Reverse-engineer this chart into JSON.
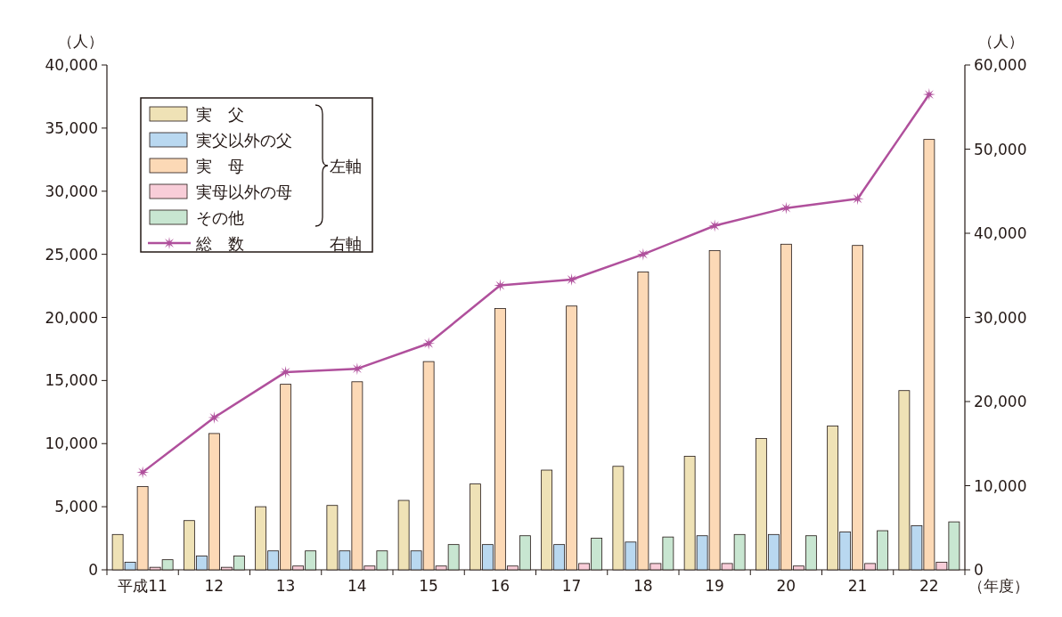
{
  "chart_data": {
    "type": "bar",
    "categories": [
      "平成11",
      "12",
      "13",
      "14",
      "15",
      "16",
      "17",
      "18",
      "19",
      "20",
      "21",
      "22"
    ],
    "xlabel": "（年度）",
    "ylabel": "（人）",
    "y2label": "（人）",
    "series": [
      {
        "name": "実　父",
        "color": "#efe2b6",
        "values": [
          2800,
          3900,
          5000,
          5100,
          5500,
          6800,
          7900,
          8200,
          9000,
          10400,
          11400,
          14200
        ]
      },
      {
        "name": "実父以外の父",
        "color": "#b9d8f0",
        "values": [
          600,
          1100,
          1500,
          1500,
          1500,
          2000,
          2000,
          2200,
          2700,
          2800,
          3000,
          3500
        ]
      },
      {
        "name": "実　母",
        "color": "#fcd9b6",
        "values": [
          6600,
          10800,
          14700,
          14900,
          16500,
          20700,
          20900,
          23600,
          25300,
          25800,
          25700,
          34100
        ]
      },
      {
        "name": "実母以外の母",
        "color": "#f8cdd8",
        "values": [
          200,
          200,
          300,
          300,
          300,
          300,
          500,
          500,
          500,
          300,
          500,
          600
        ]
      },
      {
        "name": "その他",
        "color": "#c8e6d1",
        "values": [
          800,
          1100,
          1500,
          1500,
          2000,
          2700,
          2500,
          2600,
          2800,
          2700,
          3100,
          3800
        ]
      },
      {
        "name": "総　数",
        "color": "#b0509c",
        "type": "line",
        "axis": "y2",
        "marker": "star",
        "values": [
          11600,
          18100,
          23500,
          23900,
          26900,
          33800,
          34500,
          37500,
          40900,
          43000,
          44100,
          56500
        ]
      }
    ],
    "ylim": [
      0,
      40000
    ],
    "yticks": [
      0,
      {
        "value": 5000,
        "label": "5,000"
      },
      {
        "value": 10000,
        "label": "10,000"
      },
      {
        "value": 15000,
        "label": "15,000"
      },
      {
        "value": 20000,
        "label": "20,000"
      },
      {
        "value": 25000,
        "label": "25,000"
      },
      {
        "value": 30000,
        "label": "30,000"
      },
      {
        "value": 35000,
        "label": "35,000"
      },
      {
        "value": 40000,
        "label": "40,000"
      }
    ],
    "y2lim": [
      0,
      60000
    ],
    "y2ticks": [
      0,
      {
        "value": 10000,
        "label": "10,000"
      },
      {
        "value": 20000,
        "label": "20,000"
      },
      {
        "value": 30000,
        "label": "30,000"
      },
      {
        "value": 40000,
        "label": "40,000"
      },
      {
        "value": 50000,
        "label": "50,000"
      },
      {
        "value": 60000,
        "label": "60,000"
      }
    ],
    "legend": "top left",
    "annotations": [
      "左軸",
      "右軸"
    ]
  }
}
